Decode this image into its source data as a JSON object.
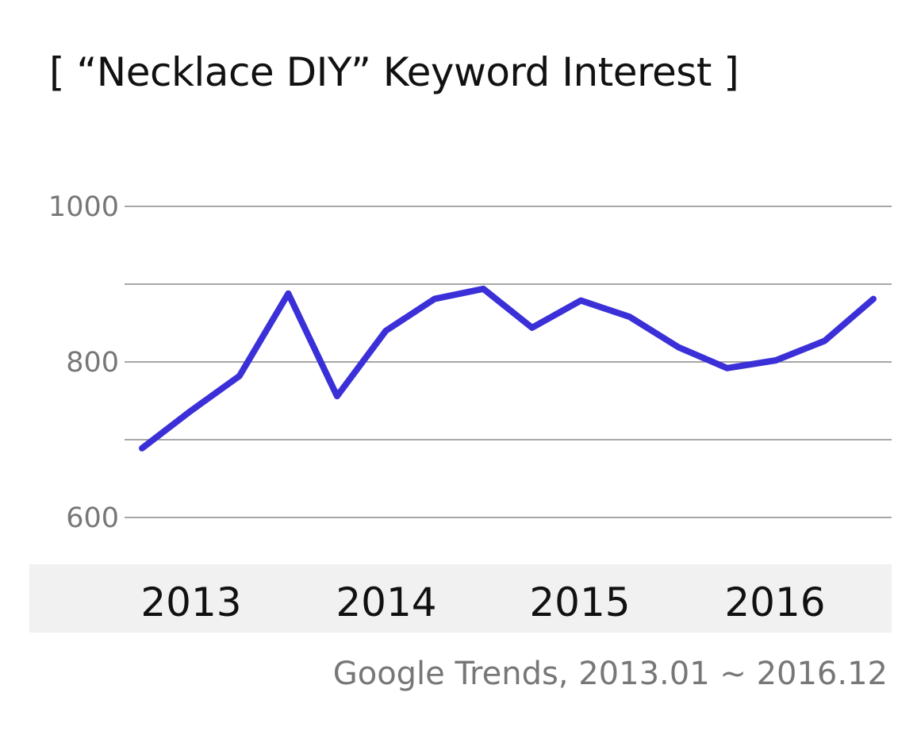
{
  "chart_data": {
    "type": "line",
    "title": "[ “Necklace DIY” Keyword Interest ]",
    "xlabel": "",
    "ylabel": "",
    "source": "Google Trends, 2013.01 ~ 2016.12",
    "x_tick_labels": [
      "2013",
      "2014",
      "2015",
      "2016"
    ],
    "y_tick_labels": [
      "1000",
      "800",
      "600"
    ],
    "y_tick_values": [
      1000,
      800,
      600
    ],
    "ylim": [
      600,
      1000
    ],
    "gridlines": [
      1000,
      900,
      800,
      700,
      600
    ],
    "grid": true,
    "legend": "none",
    "line_color": "#3b30d8",
    "series": [
      {
        "values": [
          689,
          737,
          782,
          888,
          756,
          840,
          881,
          894,
          844,
          879,
          858,
          819,
          792,
          802,
          827,
          881
        ]
      }
    ]
  }
}
